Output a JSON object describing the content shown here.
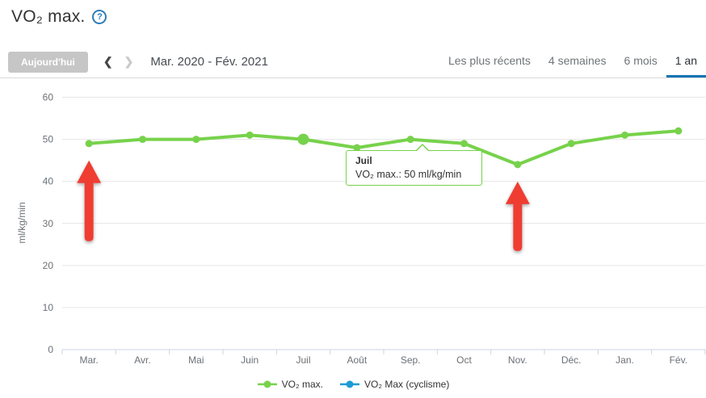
{
  "header": {
    "title": "VO₂ max.",
    "help_icon_glyph": "?"
  },
  "toolbar": {
    "today_label": "Aujourd'hui",
    "prev_icon": "❮",
    "next_icon": "❯",
    "date_range": "Mar. 2020 - Fév. 2021",
    "tabs": [
      {
        "label": "Les plus récents",
        "active": false
      },
      {
        "label": "4 semaines",
        "active": false
      },
      {
        "label": "6 mois",
        "active": false
      },
      {
        "label": "1 an",
        "active": true
      }
    ]
  },
  "chart_data": {
    "type": "line",
    "title": "VO₂ max.",
    "categories": [
      "Mar.",
      "Avr.",
      "Mai",
      "Juin",
      "Juil",
      "Août",
      "Sep.",
      "Oct",
      "Nov.",
      "Déc.",
      "Jan.",
      "Fév."
    ],
    "series": [
      {
        "name": "VO₂ max.",
        "color": "#77d24b",
        "values": [
          49,
          50,
          50,
          51,
          50,
          48,
          50,
          49,
          44,
          49,
          51,
          52
        ]
      },
      {
        "name": "VO₂ Max (cyclisme)",
        "color": "#1f9bd4",
        "values": []
      }
    ],
    "xlabel": "",
    "ylabel": "ml/kg/min",
    "ylim": [
      0,
      60
    ],
    "ytick_step": 10,
    "grid": true,
    "legend_position": "bottom",
    "highlighted_point": {
      "series": "VO₂ max.",
      "category": "Juil",
      "value": 50
    }
  },
  "tooltip": {
    "title": "Juil",
    "line": "VO₂ max.: 50 ml/kg/min"
  },
  "annotations": {
    "arrow_color": "#ef3e33",
    "arrows": [
      {
        "category": "Mar."
      },
      {
        "category": "Nov."
      }
    ]
  },
  "colors": {
    "accent_blue": "#1273b5",
    "axis_line": "#c9d4e4",
    "grid_line": "#e6e6e6"
  }
}
